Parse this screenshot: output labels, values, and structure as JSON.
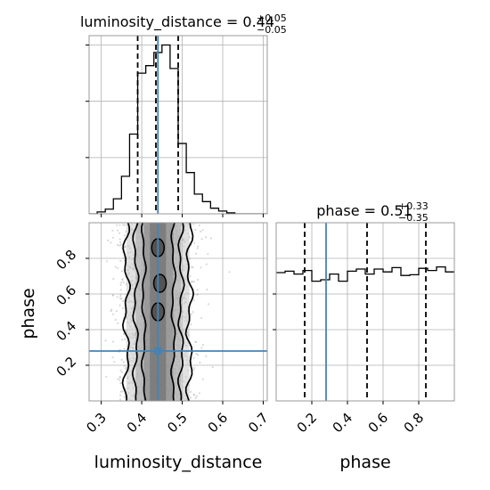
{
  "chart_data": [
    {
      "panel": "hist-luminosity-distance",
      "type": "histogram",
      "title": "luminosity_distance = 0.44",
      "title_main": "luminosity_distance = 0.44",
      "title_sup": "+0.05",
      "title_sub": "−0.05",
      "xlim": [
        0.27,
        0.71
      ],
      "bins": [
        0.27,
        0.29,
        0.31,
        0.33,
        0.35,
        0.37,
        0.39,
        0.41,
        0.43,
        0.45,
        0.47,
        0.49,
        0.51,
        0.53,
        0.55,
        0.57,
        0.59,
        0.61,
        0.63,
        0.65,
        0.67,
        0.69,
        0.71
      ],
      "counts": [
        0,
        2,
        5,
        16,
        40,
        85,
        150,
        158,
        172,
        180,
        155,
        75,
        44,
        21,
        13,
        6,
        3,
        1,
        0,
        0,
        0,
        0
      ],
      "ylim": [
        0,
        190
      ],
      "quantiles": [
        0.39,
        0.435,
        0.49
      ],
      "truth": 0.44,
      "grid": true
    },
    {
      "panel": "hist-phase",
      "type": "histogram",
      "title": "phase = 0.51",
      "title_main": "phase = 0.51",
      "title_sup": "+0.33",
      "title_sub": "−0.35",
      "xlim": [
        0,
        1
      ],
      "xticks": [
        "0.2",
        "0.4",
        "0.6",
        "0.8"
      ],
      "xlabel": "phase",
      "bins": [
        0,
        0.05,
        0.1,
        0.15,
        0.2,
        0.25,
        0.3,
        0.35,
        0.4,
        0.45,
        0.5,
        0.55,
        0.6,
        0.65,
        0.7,
        0.75,
        0.8,
        0.85,
        0.9,
        0.95,
        1.0
      ],
      "counts": [
        180,
        182,
        178,
        183,
        168,
        170,
        178,
        168,
        182,
        185,
        178,
        185,
        181,
        187,
        176,
        177,
        186,
        183,
        188,
        181
      ],
      "ylim": [
        0,
        250
      ],
      "quantiles": [
        0.16,
        0.51,
        0.84
      ],
      "truth": 0.28,
      "grid": true
    },
    {
      "panel": "2d-phase-vs-luminosity-distance",
      "type": "scatter",
      "xlabel": "luminosity_distance",
      "ylabel": "phase",
      "xlim": [
        0.27,
        0.71
      ],
      "ylim": [
        0,
        1
      ],
      "xticks": [
        "0.3",
        "0.4",
        "0.5",
        "0.6",
        "0.7"
      ],
      "yticks": [
        "0.2",
        "0.4",
        "0.6",
        "0.8"
      ],
      "truth": {
        "x": 0.44,
        "y": 0.28
      },
      "contour_x_levels": [
        [
          0.405,
          0.478
        ],
        [
          0.385,
          0.497
        ],
        [
          0.362,
          0.518
        ]
      ],
      "grid": true
    }
  ]
}
